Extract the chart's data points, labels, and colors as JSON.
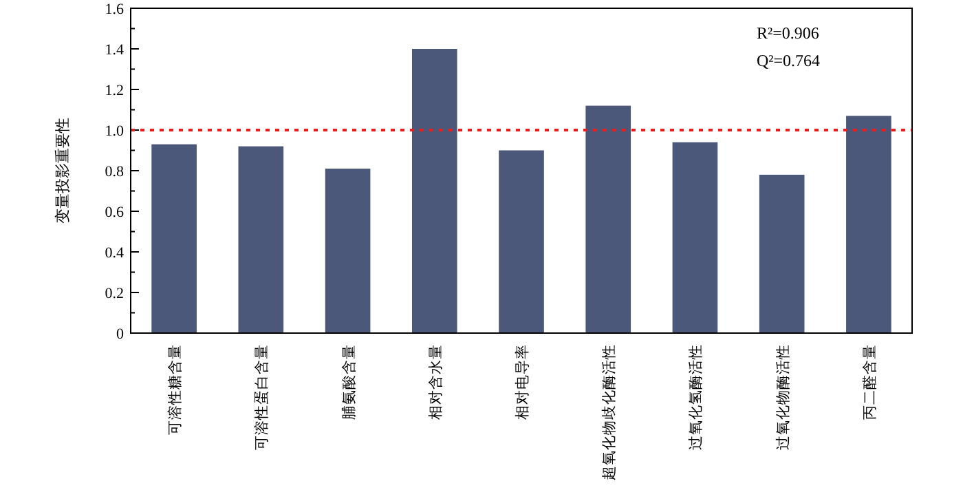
{
  "chart_data": {
    "type": "bar",
    "ylabel": "变量投影重要性",
    "categories": [
      "可溶性糖含量",
      "可溶性蛋白含量",
      "脯氨酸含量",
      "相对含水量",
      "相对电导率",
      "超氧化物歧化酶活性",
      "过氧化氢酶活性",
      "过氧化物酶活性",
      "丙二醛含量"
    ],
    "values": [
      0.93,
      0.92,
      0.81,
      1.4,
      0.9,
      1.12,
      0.94,
      0.78,
      1.07
    ],
    "color": "#4b5879",
    "ylim": [
      0,
      1.6
    ],
    "yticks": [
      0,
      0.2,
      0.4,
      0.6,
      0.8,
      {
        "value": 1,
        "label": "1.0"
      },
      1.2,
      1.4,
      1.6
    ],
    "ref_lines": [
      {
        "axis": "y",
        "value": 1,
        "color": "#ee1c1c",
        "line_style": "dotted"
      }
    ],
    "annotations": [
      "R²=0.906",
      "Q²=0.764"
    ],
    "grid": false
  }
}
